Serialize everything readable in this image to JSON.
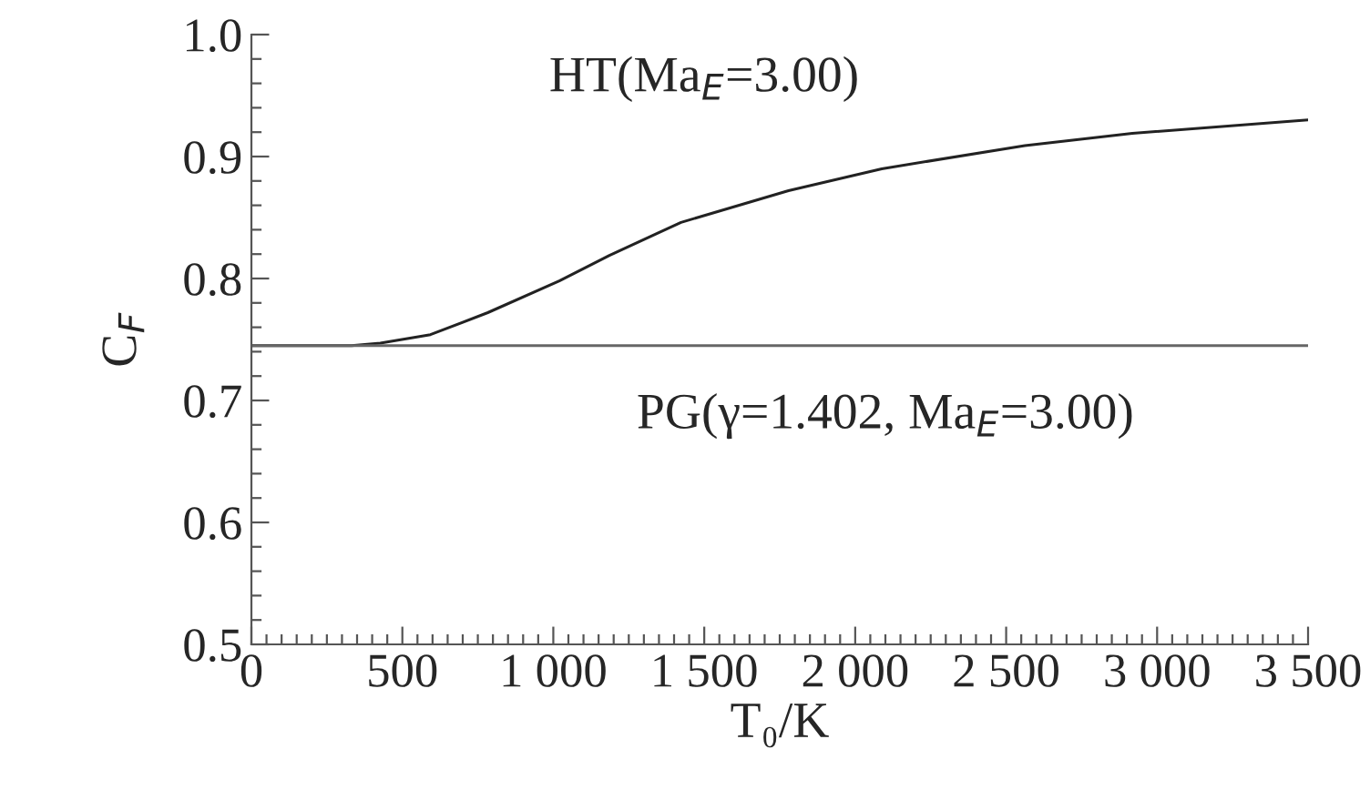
{
  "chart_data": {
    "type": "line",
    "xlabel": "T₀/K",
    "ylabel": "C$_{F}$",
    "xlim": [
      0,
      3500
    ],
    "ylim": [
      0.5,
      1.0
    ],
    "xticks": [
      0,
      500,
      {
        "value": 1000,
        "label": "1 000"
      },
      {
        "value": 1500,
        "label": "1 500"
      },
      {
        "value": 2000,
        "label": "2 000"
      },
      {
        "value": 2500,
        "label": "2 500"
      },
      {
        "value": 3000,
        "label": "3 000"
      },
      {
        "value": 3500,
        "label": "3 500"
      }
    ],
    "yticks": [
      0.5,
      0.6,
      0.7,
      0.8,
      0.9,
      {
        "value": 1.0,
        "label": "1.0"
      }
    ],
    "grid": false,
    "legend": false,
    "marker": "none",
    "line_style": "solid",
    "series": [
      {
        "name": "HT(Ma$_{E}$=3.00)",
        "color": "#222222",
        "x": [
          0,
          332,
          427,
          593,
          783,
          1020,
          1186,
          1423,
          1779,
          2088,
          2562,
          2918,
          3500
        ],
        "values": [
          0.745,
          0.745,
          0.747,
          0.754,
          0.772,
          0.798,
          0.819,
          0.846,
          0.872,
          0.89,
          0.909,
          0.919,
          0.93
        ]
      },
      {
        "name": "PG(γ=1.402, Ma$_{E}$=3.00)",
        "color": "#666666",
        "x": [
          0,
          3500
        ],
        "values": [
          0.745,
          0.745
        ]
      }
    ]
  }
}
